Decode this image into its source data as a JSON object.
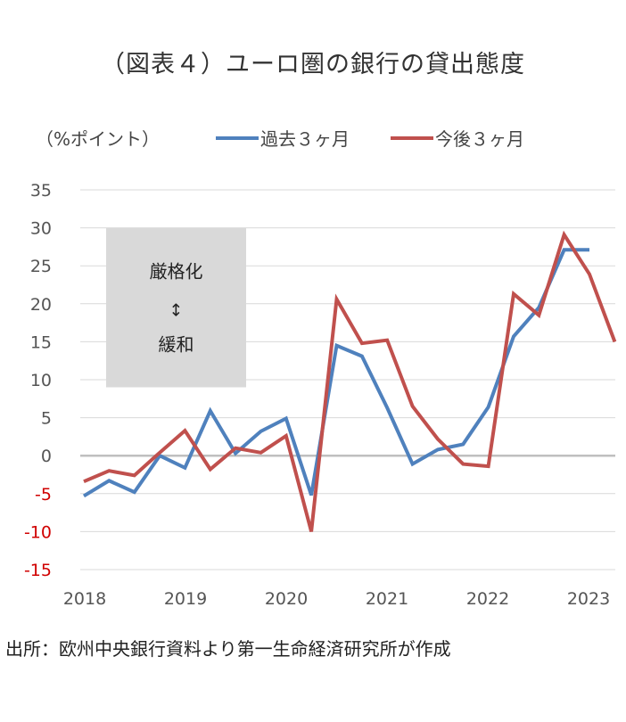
{
  "title": "（図表４）ユーロ圏の銀行の貸出態度",
  "unit_label": "（%ポイント）",
  "source": "出所：欧州中央銀行資料より第一生命経済研究所が作成",
  "colors": {
    "past": "#4f81bd",
    "future": "#c0504d",
    "negative_tick": "#d00000",
    "grid": "#d9d9d9",
    "zero_line": "#bfbfbf",
    "annotation_box": "#d9d9d9"
  },
  "annotation": {
    "top": "厳格化",
    "arrow": "↕",
    "bottom": "緩和",
    "y_range": [
      9,
      30
    ]
  },
  "chart_data": {
    "type": "line",
    "title": "（図表４）ユーロ圏の銀行の貸出態度",
    "ylabel": "（%ポイント）",
    "ylim": [
      -15,
      35
    ],
    "yticks": [
      35,
      30,
      25,
      20,
      15,
      10,
      5,
      0,
      -5,
      -10,
      -15
    ],
    "xlabels": [
      "2018",
      "2019",
      "2020",
      "2021",
      "2022",
      "2023"
    ],
    "grid": true,
    "legend_position": "top",
    "x": [
      "2018Q1",
      "2018Q2",
      "2018Q3",
      "2018Q4",
      "2019Q1",
      "2019Q2",
      "2019Q3",
      "2019Q4",
      "2020Q1",
      "2020Q2",
      "2020Q3",
      "2020Q4",
      "2021Q1",
      "2021Q2",
      "2021Q3",
      "2021Q4",
      "2022Q1",
      "2022Q2",
      "2022Q3",
      "2022Q4",
      "2023Q1",
      "2023Q2"
    ],
    "series": [
      {
        "name": "過去３ヶ月",
        "color": "#4f81bd",
        "values": [
          -5.3,
          -3.3,
          -4.8,
          0.0,
          -1.6,
          5.9,
          0.3,
          3.2,
          4.9,
          -5.2,
          14.5,
          13.1,
          6.3,
          -1.1,
          0.8,
          1.5,
          6.4,
          15.7,
          19.5,
          27.1,
          27.1,
          null
        ]
      },
      {
        "name": "今後３ヶ月",
        "color": "#c0504d",
        "values": [
          -3.4,
          -2.0,
          -2.6,
          0.4,
          3.3,
          -1.8,
          1.0,
          0.4,
          2.6,
          -10.0,
          20.6,
          14.8,
          15.2,
          6.5,
          2.2,
          -1.1,
          -1.4,
          21.3,
          18.5,
          29.1,
          23.9,
          15.0
        ]
      }
    ]
  }
}
